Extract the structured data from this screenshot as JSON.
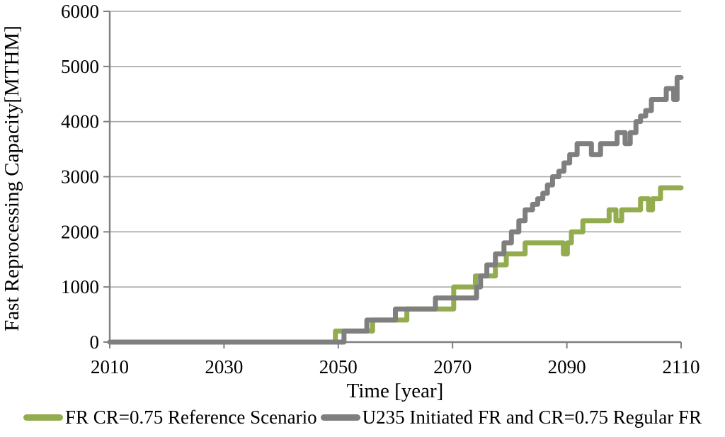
{
  "chart_data": {
    "type": "line",
    "subtype": "step",
    "title": "",
    "xlabel": "Time [year]",
    "ylabel": "Fast Reprocessing Capacity[MTHM]",
    "xlim": [
      2010,
      2110
    ],
    "ylim": [
      0,
      6000
    ],
    "x_ticks": [
      "2010",
      "2030",
      "2050",
      "2070",
      "2090",
      "2110"
    ],
    "y_ticks": [
      "0",
      "1000",
      "2000",
      "3000",
      "4000",
      "5000",
      "6000"
    ],
    "grid": "horizontal-only",
    "legend_position": "bottom",
    "background": "#FFFFFF",
    "axis_color": "#7F7F7F",
    "grid_color": "#A6A6A6",
    "text_color": "#000000",
    "series": [
      {
        "name": "FR CR=0.75 Reference Scenario",
        "color": "#93AC4F",
        "line_width": 7,
        "end_year": 2110,
        "step_points": [
          [
            2010,
            0
          ],
          [
            2049.5,
            200
          ],
          [
            2056,
            400
          ],
          [
            2062,
            600
          ],
          [
            2070.2,
            1000
          ],
          [
            2074,
            1200
          ],
          [
            2077.5,
            1400
          ],
          [
            2079.4,
            1600
          ],
          [
            2082.7,
            1800
          ],
          [
            2089.4,
            1600
          ],
          [
            2090.1,
            1800
          ],
          [
            2090.8,
            2000
          ],
          [
            2092.8,
            2200
          ],
          [
            2097.4,
            2400
          ],
          [
            2098.6,
            2200
          ],
          [
            2099.6,
            2400
          ],
          [
            2102.9,
            2600
          ],
          [
            2104.3,
            2400
          ],
          [
            2105.0,
            2600
          ],
          [
            2106.4,
            2800
          ]
        ]
      },
      {
        "name": "U235 Initiated FR and CR=0.75 Regular FR",
        "color": "#7F7F7F",
        "line_width": 7,
        "end_year": 2110,
        "step_points": [
          [
            2010,
            0
          ],
          [
            2051,
            200
          ],
          [
            2055,
            400
          ],
          [
            2060,
            600
          ],
          [
            2067,
            800
          ],
          [
            2074.2,
            1000
          ],
          [
            2074.9,
            1200
          ],
          [
            2076,
            1400
          ],
          [
            2077.5,
            1600
          ],
          [
            2079,
            1800
          ],
          [
            2080.3,
            2000
          ],
          [
            2081.6,
            2200
          ],
          [
            2082.7,
            2400
          ],
          [
            2084,
            2500
          ],
          [
            2084.9,
            2600
          ],
          [
            2085.8,
            2700
          ],
          [
            2086.6,
            2850
          ],
          [
            2087.5,
            3000
          ],
          [
            2088.6,
            3100
          ],
          [
            2089.5,
            3250
          ],
          [
            2090.5,
            3400
          ],
          [
            2091.8,
            3600
          ],
          [
            2094.3,
            3400
          ],
          [
            2095.9,
            3600
          ],
          [
            2098.8,
            3800
          ],
          [
            2100.2,
            3600
          ],
          [
            2101.1,
            3800
          ],
          [
            2102.1,
            4000
          ],
          [
            2102.9,
            4100
          ],
          [
            2103.8,
            4200
          ],
          [
            2104.8,
            4400
          ],
          [
            2107.4,
            4600
          ],
          [
            2108.7,
            4400
          ],
          [
            2109.3,
            4800
          ]
        ]
      }
    ]
  }
}
